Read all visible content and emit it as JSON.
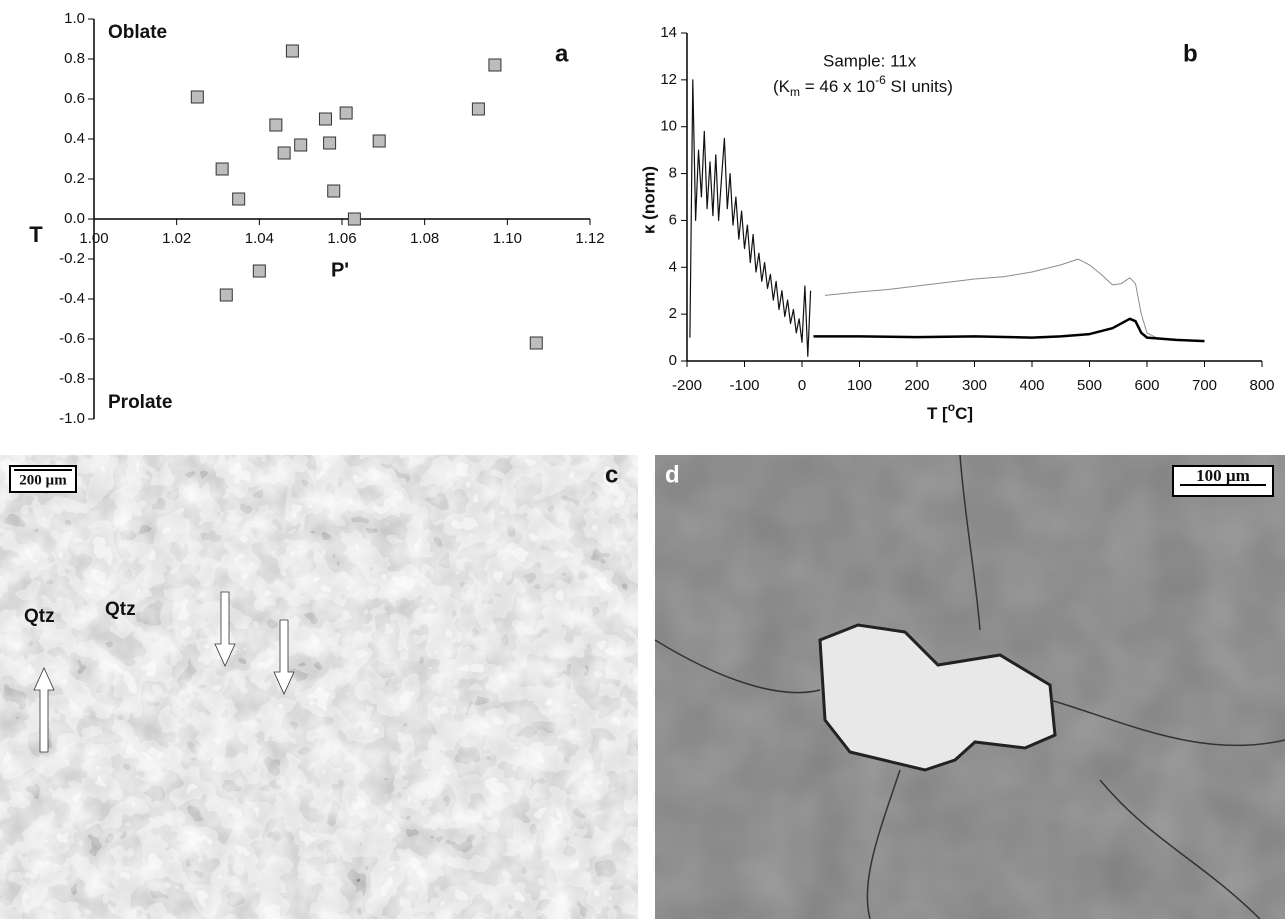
{
  "chart_data": [
    {
      "type": "scatter",
      "panel_label": "a",
      "x_label": "P'",
      "y_label": "T",
      "annotations": [
        "Oblate",
        "Prolate"
      ],
      "color": "#bdbdbd",
      "x": [
        1.025,
        1.048,
        1.097,
        1.093,
        1.044,
        1.056,
        1.061,
        1.031,
        1.046,
        1.05,
        1.057,
        1.069,
        1.035,
        1.058,
        1.063,
        1.04,
        1.032,
        1.107
      ],
      "values": [
        0.61,
        0.84,
        0.77,
        0.55,
        0.47,
        0.5,
        0.53,
        0.25,
        0.33,
        0.37,
        0.38,
        0.39,
        0.1,
        0.14,
        0,
        -0.26,
        -0.38,
        -0.62
      ],
      "xlim": [
        1.0,
        1.12
      ],
      "xticks": [
        {
          "value": 1.0,
          "label": "1.00"
        },
        1.02,
        1.04,
        1.06,
        1.08,
        {
          "value": 1.1,
          "label": "1.10"
        },
        1.12
      ],
      "ylim": [
        -1.0,
        1.0
      ],
      "yticks": [
        {
          "value": 1.0,
          "label": "1.0"
        },
        0.8,
        0.6,
        0.4,
        0.2,
        {
          "value": 0,
          "label": "0.0"
        },
        -0.2,
        -0.4,
        -0.6,
        -0.8,
        {
          "value": -1.0,
          "label": "-1.0"
        }
      ]
    },
    {
      "type": "line",
      "panel_label": "b",
      "y_label": "κ (norm)",
      "x_label_parts": [
        "T [",
        "o",
        "C]"
      ],
      "annotation": "Sample: 11x",
      "annotation_parts": [
        "(K",
        "m",
        " = 46 x 10",
        "-6",
        " SI units)"
      ],
      "xlim": [
        -200,
        800
      ],
      "xticks": [
        -200,
        -100,
        0,
        100,
        200,
        300,
        400,
        500,
        600,
        700,
        800
      ],
      "ylim": [
        0,
        14
      ],
      "yticks": [
        0,
        2,
        4,
        6,
        8,
        10,
        12,
        14
      ],
      "series": [
        {
          "color": "#111111",
          "width": 1.2,
          "x": [
            -195,
            -190,
            -185,
            -180,
            -175,
            -170,
            -165,
            -160,
            -155,
            -150,
            -145,
            -140,
            -135,
            -130,
            -125,
            -120,
            -115,
            -110,
            -105,
            -100,
            -95,
            -90,
            -85,
            -80,
            -75,
            -70,
            -65,
            -60,
            -55,
            -50,
            -45,
            -40,
            -35,
            -30,
            -25,
            -20,
            -15,
            -10,
            -5,
            0,
            5,
            10,
            15
          ],
          "values": [
            1,
            12,
            6,
            9,
            7,
            9.8,
            6.5,
            8.5,
            6.2,
            8.8,
            6,
            7.8,
            9.5,
            6.5,
            8,
            5.8,
            7,
            5.2,
            6.4,
            4.8,
            5.8,
            4.2,
            5.4,
            3.8,
            4.6,
            3.4,
            4.2,
            3.1,
            3.7,
            2.6,
            3.4,
            2.2,
            3,
            1.9,
            2.6,
            1.6,
            2.2,
            1.2,
            1.8,
            0.8,
            3.2,
            0.2,
            3
          ]
        },
        {
          "color": "#8c8c8c",
          "width": 1,
          "x": [
            40,
            100,
            150,
            200,
            250,
            300,
            350,
            400,
            450,
            480,
            500,
            520,
            540,
            555,
            570,
            580,
            590,
            600,
            620,
            650,
            700
          ],
          "values": [
            2.8,
            2.95,
            3.05,
            3.2,
            3.35,
            3.5,
            3.6,
            3.8,
            4.1,
            4.35,
            4.1,
            3.7,
            3.25,
            3.3,
            3.55,
            3.3,
            2,
            1.2,
            0.95,
            0.9,
            0.85
          ]
        },
        {
          "color": "#000000",
          "width": 2.5,
          "x": [
            20,
            100,
            200,
            300,
            400,
            450,
            500,
            540,
            570,
            580,
            590,
            600,
            650,
            700
          ],
          "values": [
            1.05,
            1.05,
            1.02,
            1.05,
            1,
            1.05,
            1.15,
            1.4,
            1.8,
            1.7,
            1.2,
            1,
            0.9,
            0.85
          ]
        }
      ]
    }
  ],
  "panels": [
    {
      "label": "c",
      "scale_bar": "200 µm",
      "annotations": [
        "Qtz",
        "Qtz"
      ]
    },
    {
      "label": "d",
      "scale_bar": "100 µm"
    }
  ]
}
